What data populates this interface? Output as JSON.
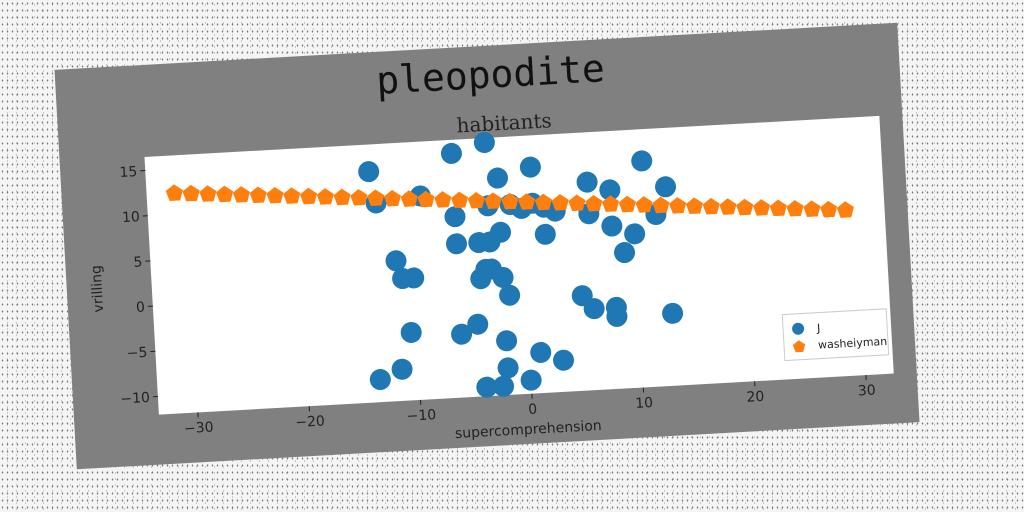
{
  "chart_data": {
    "type": "scatter",
    "suptitle": "pleopodite",
    "title": "habitants",
    "xlabel": "supercomprehension",
    "ylabel": "vrilling",
    "xlim": [
      -33.5,
      32.5
    ],
    "ylim": [
      -12,
      16.5
    ],
    "xticks": [
      -30,
      -20,
      -10,
      0,
      10,
      20,
      30
    ],
    "yticks": [
      -10,
      -5,
      0,
      5,
      10,
      15
    ],
    "grid": false,
    "legend_position": "lower-right",
    "series": [
      {
        "name": "J",
        "marker": "circle",
        "color": "#1f77b4",
        "x": [
          -13.5,
          -6,
          -3,
          -2,
          1,
          -13,
          -9,
          -3,
          -1,
          6,
          8,
          1,
          2,
          11,
          13,
          -6,
          0,
          3,
          6,
          -6,
          -3,
          8,
          12,
          -2,
          -4,
          2,
          9,
          10,
          -11.5,
          -11,
          -10,
          -4,
          -3,
          -2,
          -3.5,
          -1.5,
          8,
          5,
          6,
          8,
          13,
          -10.5,
          -4.5,
          -6,
          -2,
          -13.5,
          -11.5,
          -4,
          -2.5,
          0,
          -2,
          1,
          3
        ],
        "y": [
          13.5,
          15,
          16,
          12,
          13,
          10,
          10.5,
          9,
          9,
          11,
          10,
          9,
          8.5,
          13,
          10,
          8,
          8.5,
          8,
          7.5,
          5,
          5,
          6,
          7,
          6,
          5,
          5.5,
          3,
          5,
          3.5,
          1.5,
          1.5,
          1,
          2,
          1,
          2,
          -1,
          -3,
          -1.5,
          -3,
          -4,
          -4,
          -4.5,
          -4,
          -5,
          -6,
          -9.5,
          -8.5,
          -11,
          -11,
          -10.5,
          -9,
          -7.5,
          -8.5
        ]
      },
      {
        "name": "washeiyman",
        "marker": "pentagon",
        "color": "#ff7f0e",
        "x": [
          -31,
          -29.5,
          -28,
          -26.5,
          -25,
          -23.5,
          -22,
          -20.5,
          -19,
          -17.5,
          -16,
          -14.5,
          -13,
          -11.5,
          -10,
          -8.5,
          -7,
          -5.5,
          -4,
          -2.5,
          -1,
          0.5,
          2,
          3.5,
          5,
          6.5,
          8,
          9.5,
          11,
          12.5,
          14,
          15.5,
          17,
          18.5,
          20,
          21.5,
          23,
          24.5,
          26,
          27.5,
          29
        ],
        "y": [
          12.3,
          12.15,
          12,
          11.85,
          11.7,
          11.55,
          11.4,
          11.25,
          11.1,
          10.95,
          10.8,
          10.65,
          10.5,
          10.35,
          10.2,
          10.05,
          9.9,
          9.75,
          9.6,
          9.45,
          9.3,
          9.15,
          9,
          8.85,
          8.7,
          8.55,
          8.4,
          8.25,
          8.1,
          7.95,
          7.8,
          7.65,
          7.5,
          7.35,
          7.2,
          7.05,
          6.9,
          6.75,
          6.6,
          6.45,
          6.3
        ]
      }
    ]
  }
}
